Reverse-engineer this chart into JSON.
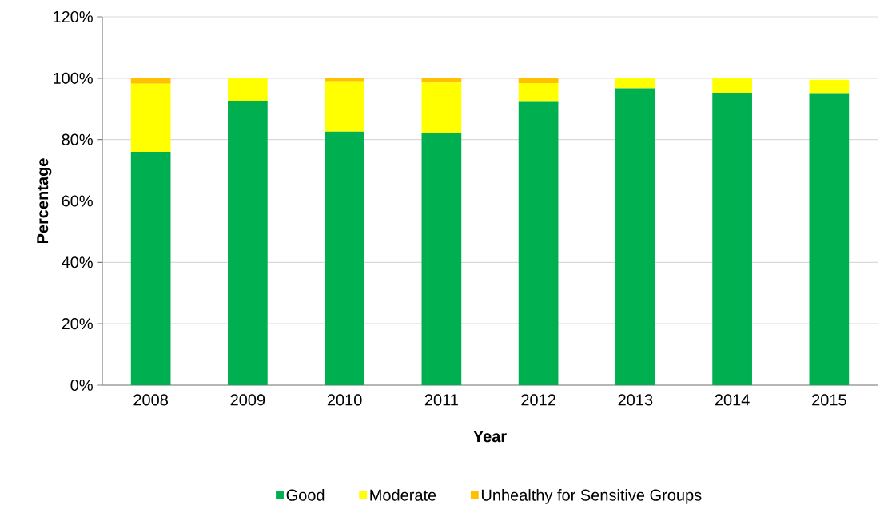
{
  "chart_data": {
    "type": "bar",
    "stacked": true,
    "xlabel": "Year",
    "ylabel": "Percentage",
    "categories": [
      "2008",
      "2009",
      "2010",
      "2011",
      "2012",
      "2013",
      "2014",
      "2015"
    ],
    "series": [
      {
        "name": "Good",
        "color": "#00b050",
        "values": [
          76.0,
          92.5,
          82.6,
          82.2,
          92.3,
          96.7,
          95.3,
          94.9
        ]
      },
      {
        "name": "Moderate",
        "color": "#ffff00",
        "values": [
          22.2,
          7.5,
          16.4,
          16.4,
          6.1,
          3.3,
          4.7,
          4.6
        ]
      },
      {
        "name": "Unhealthy for Sensitive Groups",
        "color": "#ffc000",
        "values": [
          1.8,
          0,
          1.0,
          1.4,
          1.6,
          0,
          0,
          0
        ]
      }
    ],
    "ylim": [
      0,
      120
    ],
    "yticks": [
      {
        "value": 0,
        "label": "0%"
      },
      {
        "value": 20,
        "label": "20%"
      },
      {
        "value": 40,
        "label": "40%"
      },
      {
        "value": 60,
        "label": "60%"
      },
      {
        "value": 80,
        "label": "80%"
      },
      {
        "value": 100,
        "label": "100%"
      },
      {
        "value": 120,
        "label": "120%"
      }
    ],
    "grid": "y",
    "legend": "bottom"
  }
}
